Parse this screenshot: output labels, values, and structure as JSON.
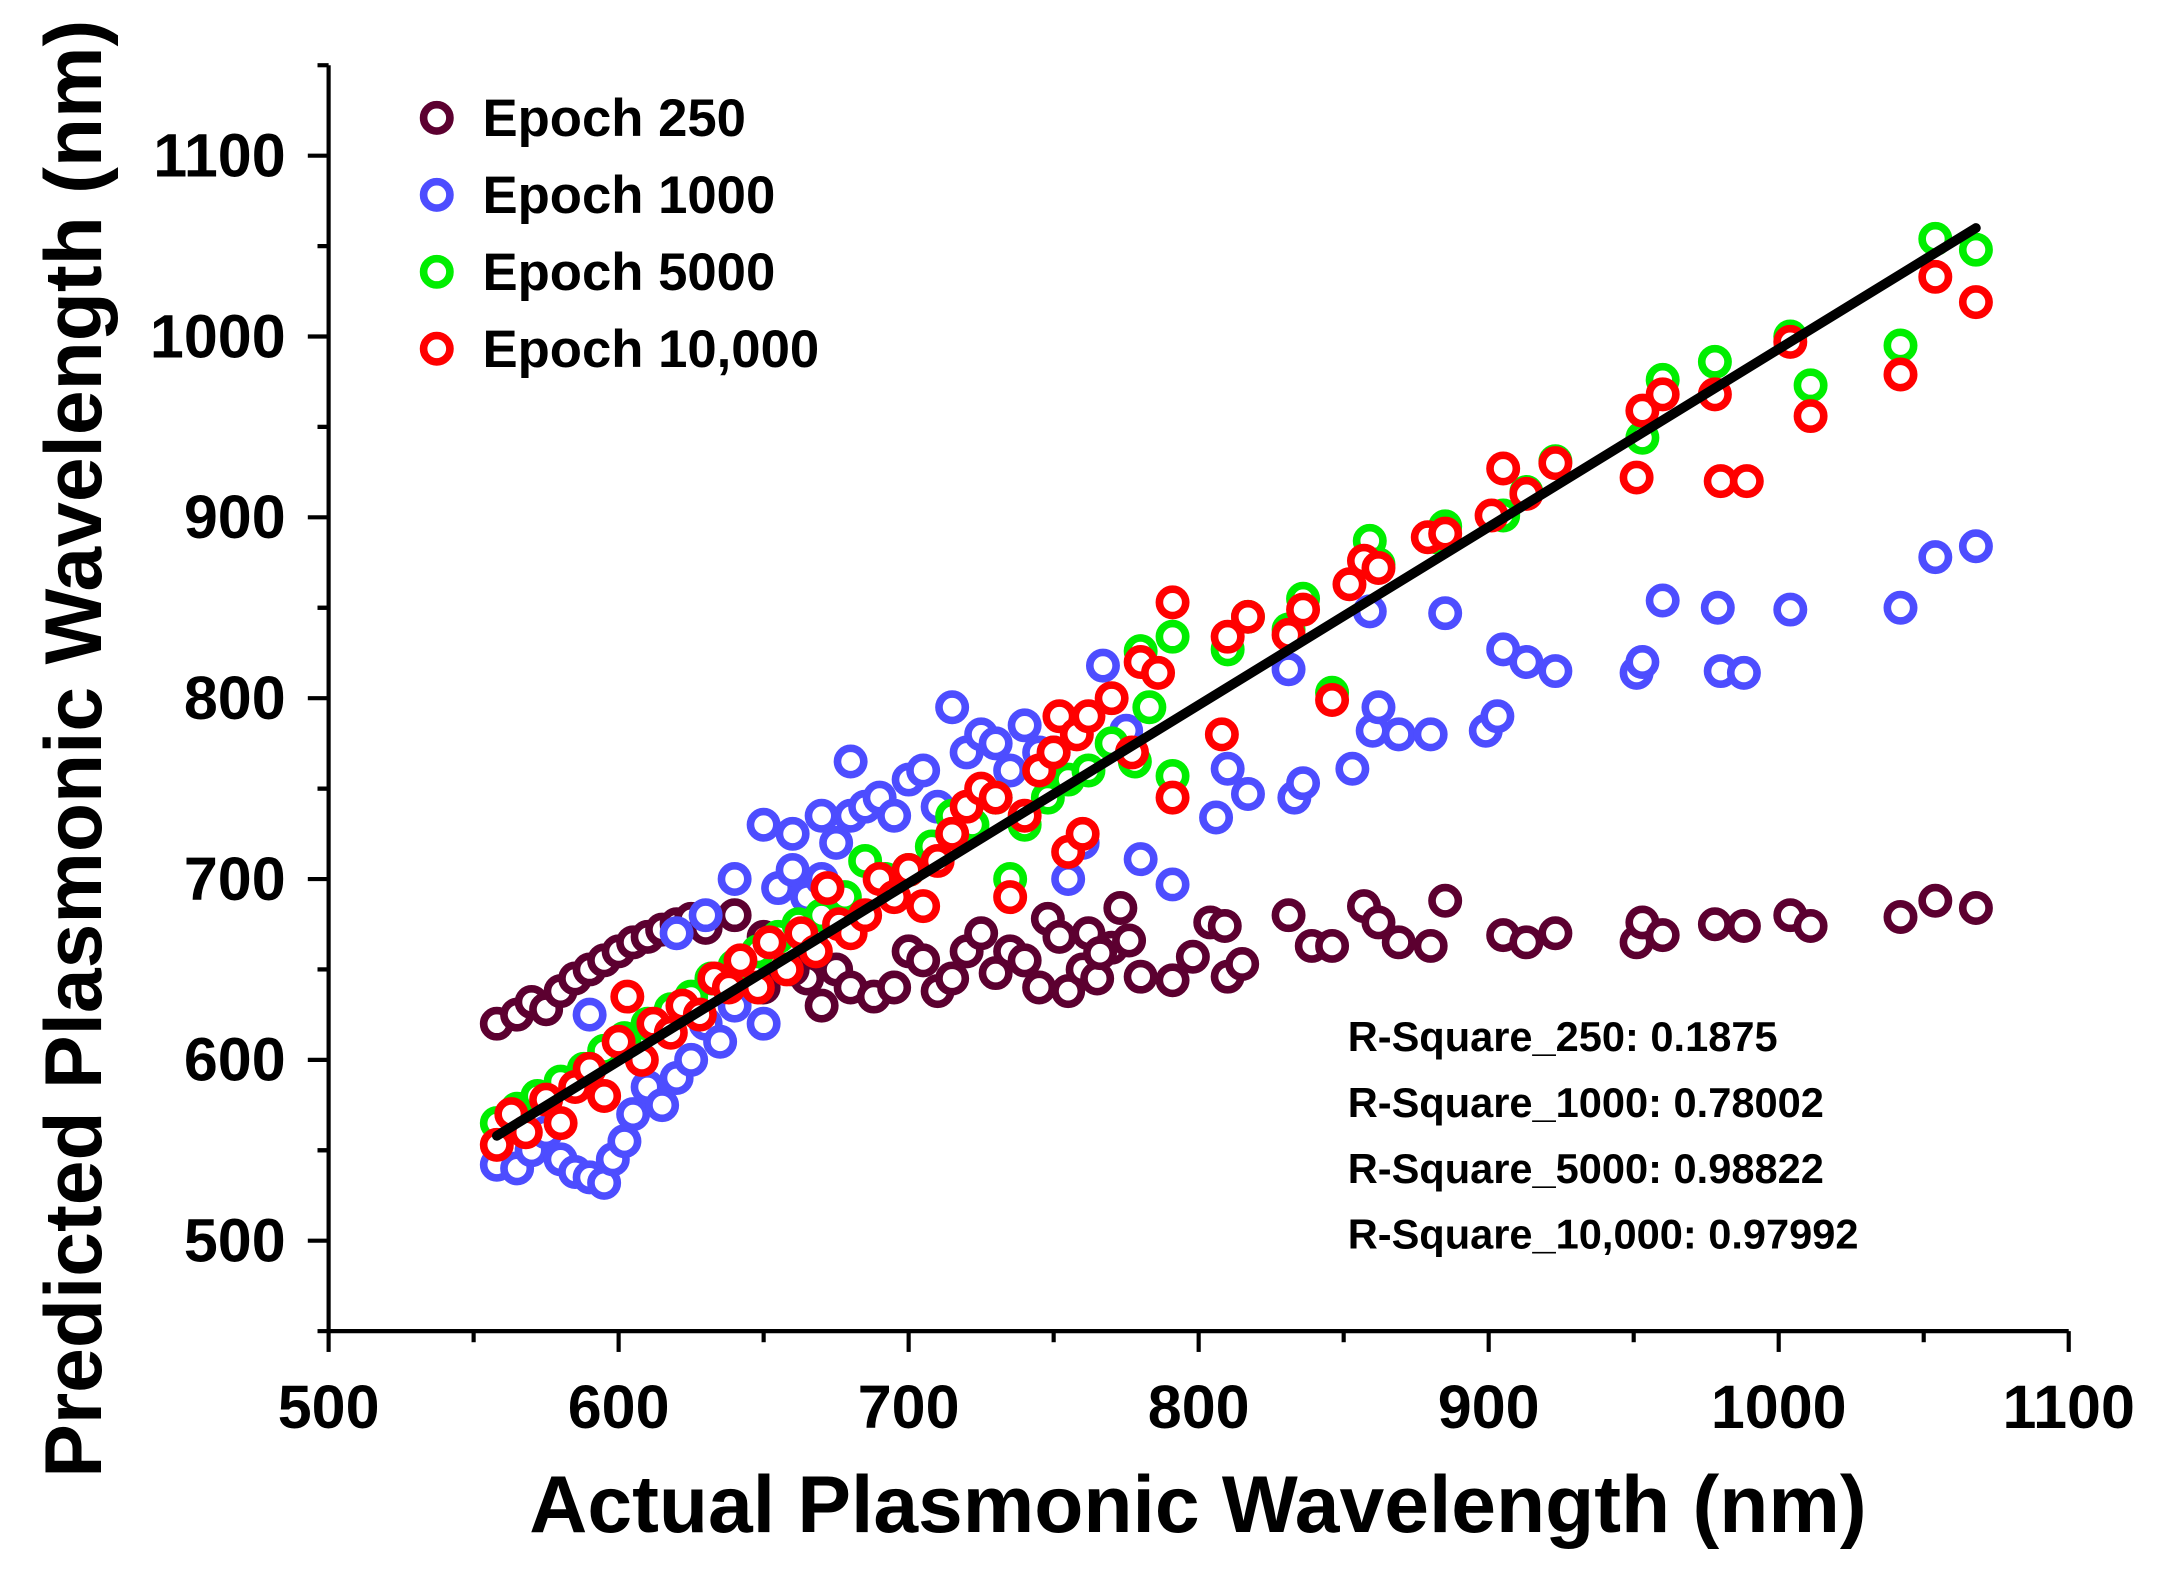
{
  "chart_data": {
    "type": "scatter",
    "xlabel": "Actual Plasmonic Wavelength (nm)",
    "ylabel": "Predicted Plasmonic Wavelength (nm)",
    "xlim": [
      500,
      1100
    ],
    "ylim": [
      450,
      1150
    ],
    "xticks": [
      "500",
      "600",
      "700",
      "800",
      "900",
      "1000",
      "1100"
    ],
    "yticks": [
      "500",
      "600",
      "700",
      "800",
      "900",
      "1000",
      "1100"
    ],
    "grid": false,
    "legend_position": "top-left",
    "fit_line": {
      "x": [
        558,
        1068
      ],
      "y": [
        558,
        1060
      ],
      "color": "#000000"
    },
    "series": [
      {
        "name": "Epoch 250",
        "color": "#5c0030",
        "points": [
          [
            558,
            620
          ],
          [
            565,
            625
          ],
          [
            570,
            632
          ],
          [
            575,
            628
          ],
          [
            580,
            638
          ],
          [
            585,
            645
          ],
          [
            590,
            650
          ],
          [
            595,
            655
          ],
          [
            600,
            660
          ],
          [
            605,
            665
          ],
          [
            610,
            668
          ],
          [
            615,
            672
          ],
          [
            620,
            675
          ],
          [
            625,
            678
          ],
          [
            630,
            673
          ],
          [
            640,
            680
          ],
          [
            650,
            668
          ],
          [
            660,
            660
          ],
          [
            665,
            645
          ],
          [
            670,
            630
          ],
          [
            675,
            650
          ],
          [
            680,
            640
          ],
          [
            688,
            635
          ],
          [
            695,
            640
          ],
          [
            700,
            660
          ],
          [
            705,
            655
          ],
          [
            710,
            638
          ],
          [
            715,
            645
          ],
          [
            720,
            660
          ],
          [
            725,
            670
          ],
          [
            730,
            648
          ],
          [
            735,
            660
          ],
          [
            740,
            655
          ],
          [
            745,
            640
          ],
          [
            748,
            678
          ],
          [
            752,
            668
          ],
          [
            755,
            638
          ],
          [
            760,
            650
          ],
          [
            762,
            670
          ],
          [
            765,
            645
          ],
          [
            770,
            662
          ],
          [
            640,
            650
          ],
          [
            650,
            640
          ],
          [
            660,
            650
          ],
          [
            766,
            659
          ],
          [
            773,
            684
          ],
          [
            776,
            666
          ],
          [
            780,
            646
          ],
          [
            791,
            644
          ],
          [
            798,
            657
          ],
          [
            804,
            676
          ],
          [
            809,
            674
          ],
          [
            810,
            646
          ],
          [
            815,
            653
          ],
          [
            831,
            680
          ],
          [
            839,
            663
          ],
          [
            846,
            663
          ],
          [
            857,
            685
          ],
          [
            862,
            676
          ],
          [
            869,
            665
          ],
          [
            880,
            663
          ],
          [
            885,
            688
          ],
          [
            905,
            669
          ],
          [
            913,
            665
          ],
          [
            923,
            670
          ],
          [
            951,
            665
          ],
          [
            953,
            676
          ],
          [
            960,
            669
          ],
          [
            978,
            675
          ],
          [
            988,
            674
          ],
          [
            1004,
            680
          ],
          [
            1011,
            674
          ],
          [
            1042,
            679
          ],
          [
            1054,
            688
          ],
          [
            1068,
            684
          ]
        ]
      },
      {
        "name": "Epoch 1000",
        "color": "#4d4dff",
        "points": [
          [
            558,
            542
          ],
          [
            565,
            540
          ],
          [
            570,
            550
          ],
          [
            575,
            560
          ],
          [
            580,
            545
          ],
          [
            585,
            538
          ],
          [
            590,
            535
          ],
          [
            595,
            532
          ],
          [
            598,
            545
          ],
          [
            602,
            555
          ],
          [
            605,
            570
          ],
          [
            610,
            585
          ],
          [
            615,
            575
          ],
          [
            620,
            590
          ],
          [
            625,
            600
          ],
          [
            630,
            620
          ],
          [
            635,
            610
          ],
          [
            640,
            630
          ],
          [
            645,
            650
          ],
          [
            650,
            620
          ],
          [
            655,
            695
          ],
          [
            660,
            705
          ],
          [
            665,
            690
          ],
          [
            670,
            700
          ],
          [
            675,
            720
          ],
          [
            680,
            735
          ],
          [
            685,
            740
          ],
          [
            690,
            745
          ],
          [
            695,
            735
          ],
          [
            700,
            755
          ],
          [
            705,
            760
          ],
          [
            710,
            740
          ],
          [
            715,
            795
          ],
          [
            720,
            770
          ],
          [
            725,
            780
          ],
          [
            730,
            775
          ],
          [
            735,
            760
          ],
          [
            740,
            785
          ],
          [
            745,
            770
          ],
          [
            750,
            770
          ],
          [
            755,
            700
          ],
          [
            760,
            720
          ],
          [
            620,
            670
          ],
          [
            630,
            680
          ],
          [
            640,
            700
          ],
          [
            650,
            730
          ],
          [
            660,
            725
          ],
          [
            670,
            735
          ],
          [
            680,
            765
          ],
          [
            600,
            610
          ],
          [
            590,
            625
          ],
          [
            767,
            818
          ],
          [
            775,
            782
          ],
          [
            780,
            711
          ],
          [
            791,
            697
          ],
          [
            806,
            734
          ],
          [
            810,
            761
          ],
          [
            817,
            747
          ],
          [
            833,
            745
          ],
          [
            836,
            753
          ],
          [
            831,
            816
          ],
          [
            853,
            761
          ],
          [
            859,
            848
          ],
          [
            860,
            782
          ],
          [
            862,
            795
          ],
          [
            869,
            780
          ],
          [
            880,
            780
          ],
          [
            885,
            847
          ],
          [
            899,
            782
          ],
          [
            903,
            790
          ],
          [
            905,
            827
          ],
          [
            913,
            820
          ],
          [
            923,
            815
          ],
          [
            951,
            814
          ],
          [
            953,
            820
          ],
          [
            960,
            854
          ],
          [
            979,
            850
          ],
          [
            980,
            815
          ],
          [
            988,
            814
          ],
          [
            1004,
            849
          ],
          [
            1042,
            850
          ],
          [
            1054,
            878
          ],
          [
            1068,
            884
          ]
        ]
      },
      {
        "name": "Epoch 5000",
        "color": "#00ee00",
        "points": [
          [
            558,
            565
          ],
          [
            565,
            573
          ],
          [
            572,
            580
          ],
          [
            580,
            588
          ],
          [
            588,
            595
          ],
          [
            595,
            605
          ],
          [
            602,
            612
          ],
          [
            610,
            620
          ],
          [
            618,
            628
          ],
          [
            625,
            635
          ],
          [
            632,
            645
          ],
          [
            640,
            652
          ],
          [
            648,
            660
          ],
          [
            655,
            668
          ],
          [
            662,
            675
          ],
          [
            670,
            680
          ],
          [
            678,
            690
          ],
          [
            685,
            710
          ],
          [
            692,
            700
          ],
          [
            700,
            705
          ],
          [
            708,
            718
          ],
          [
            715,
            735
          ],
          [
            722,
            730
          ],
          [
            730,
            745
          ],
          [
            735,
            700
          ],
          [
            740,
            730
          ],
          [
            748,
            745
          ],
          [
            755,
            755
          ],
          [
            762,
            760
          ],
          [
            770,
            775
          ],
          [
            778,
            765
          ],
          [
            783,
            795
          ],
          [
            780,
            826
          ],
          [
            791,
            834
          ],
          [
            791,
            757
          ],
          [
            810,
            827
          ],
          [
            817,
            845
          ],
          [
            831,
            838
          ],
          [
            836,
            855
          ],
          [
            846,
            803
          ],
          [
            859,
            887
          ],
          [
            862,
            874
          ],
          [
            882,
            889
          ],
          [
            885,
            895
          ],
          [
            905,
            901
          ],
          [
            913,
            914
          ],
          [
            923,
            931
          ],
          [
            953,
            944
          ],
          [
            960,
            976
          ],
          [
            978,
            986
          ],
          [
            1004,
            1000
          ],
          [
            1011,
            973
          ],
          [
            1042,
            995
          ],
          [
            1054,
            1054
          ],
          [
            1068,
            1048
          ]
        ]
      },
      {
        "name": "Epoch 10,000",
        "color": "#ff0000",
        "points": [
          [
            558,
            553
          ],
          [
            563,
            570
          ],
          [
            568,
            560
          ],
          [
            575,
            578
          ],
          [
            580,
            565
          ],
          [
            585,
            585
          ],
          [
            590,
            595
          ],
          [
            595,
            580
          ],
          [
            600,
            610
          ],
          [
            603,
            635
          ],
          [
            608,
            600
          ],
          [
            612,
            620
          ],
          [
            618,
            615
          ],
          [
            622,
            630
          ],
          [
            628,
            625
          ],
          [
            633,
            645
          ],
          [
            638,
            640
          ],
          [
            642,
            655
          ],
          [
            648,
            640
          ],
          [
            652,
            665
          ],
          [
            658,
            650
          ],
          [
            663,
            670
          ],
          [
            668,
            660
          ],
          [
            672,
            695
          ],
          [
            676,
            675
          ],
          [
            680,
            670
          ],
          [
            685,
            680
          ],
          [
            690,
            700
          ],
          [
            695,
            690
          ],
          [
            700,
            705
          ],
          [
            705,
            685
          ],
          [
            710,
            710
          ],
          [
            715,
            725
          ],
          [
            720,
            740
          ],
          [
            725,
            750
          ],
          [
            730,
            745
          ],
          [
            735,
            690
          ],
          [
            740,
            735
          ],
          [
            745,
            760
          ],
          [
            750,
            770
          ],
          [
            752,
            790
          ],
          [
            755,
            715
          ],
          [
            758,
            780
          ],
          [
            760,
            725
          ],
          [
            762,
            790
          ],
          [
            770,
            800
          ],
          [
            777,
            770
          ],
          [
            780,
            820
          ],
          [
            786,
            814
          ],
          [
            791,
            853
          ],
          [
            791,
            745
          ],
          [
            808,
            780
          ],
          [
            810,
            834
          ],
          [
            817,
            845
          ],
          [
            831,
            835
          ],
          [
            836,
            849
          ],
          [
            846,
            799
          ],
          [
            852,
            863
          ],
          [
            857,
            876
          ],
          [
            862,
            872
          ],
          [
            879,
            889
          ],
          [
            885,
            891
          ],
          [
            901,
            901
          ],
          [
            905,
            927
          ],
          [
            913,
            913
          ],
          [
            923,
            930
          ],
          [
            951,
            922
          ],
          [
            953,
            959
          ],
          [
            960,
            968
          ],
          [
            978,
            968
          ],
          [
            980,
            920
          ],
          [
            989,
            920
          ],
          [
            1004,
            997
          ],
          [
            1011,
            956
          ],
          [
            1042,
            979
          ],
          [
            1054,
            1033
          ],
          [
            1068,
            1019
          ]
        ]
      }
    ],
    "annotations": [
      "R-Square_250: 0.1875",
      "R-Square_1000: 0.78002",
      "R-Square_5000: 0.98822",
      "R-Square_10,000: 0.97992"
    ]
  }
}
